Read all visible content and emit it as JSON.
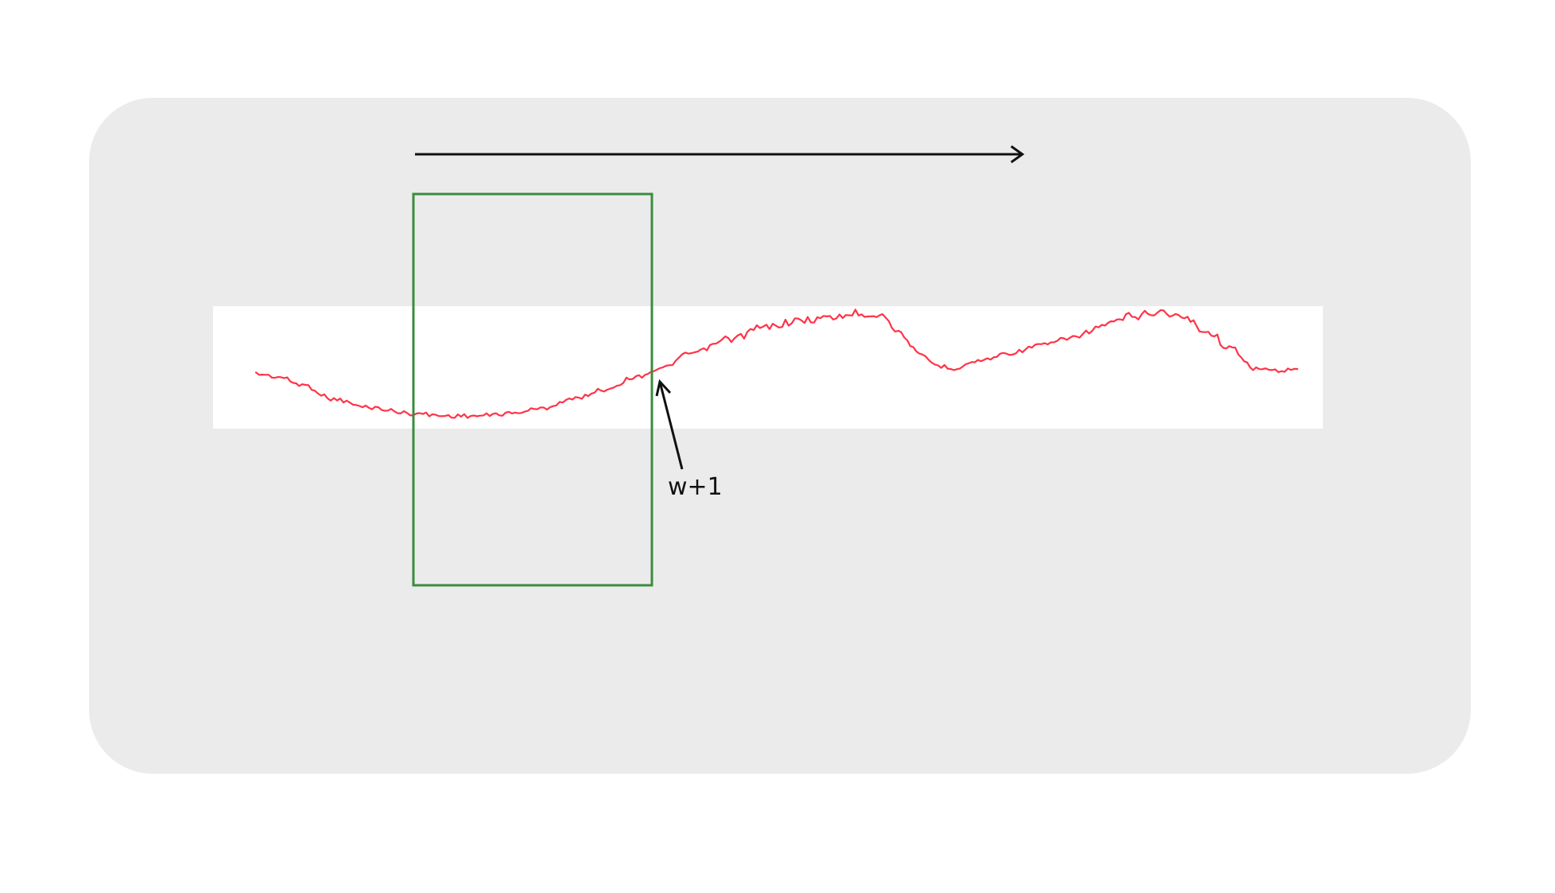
{
  "colors": {
    "background": "#ffffff",
    "panel": "#ebebeb",
    "signal_band": "#ffffff",
    "signal": "#ff3347",
    "window": "#3a8c3e",
    "arrow": "#111111",
    "label": "#111111"
  },
  "window_label": "w+1",
  "signal_shape": "noisy-wave"
}
